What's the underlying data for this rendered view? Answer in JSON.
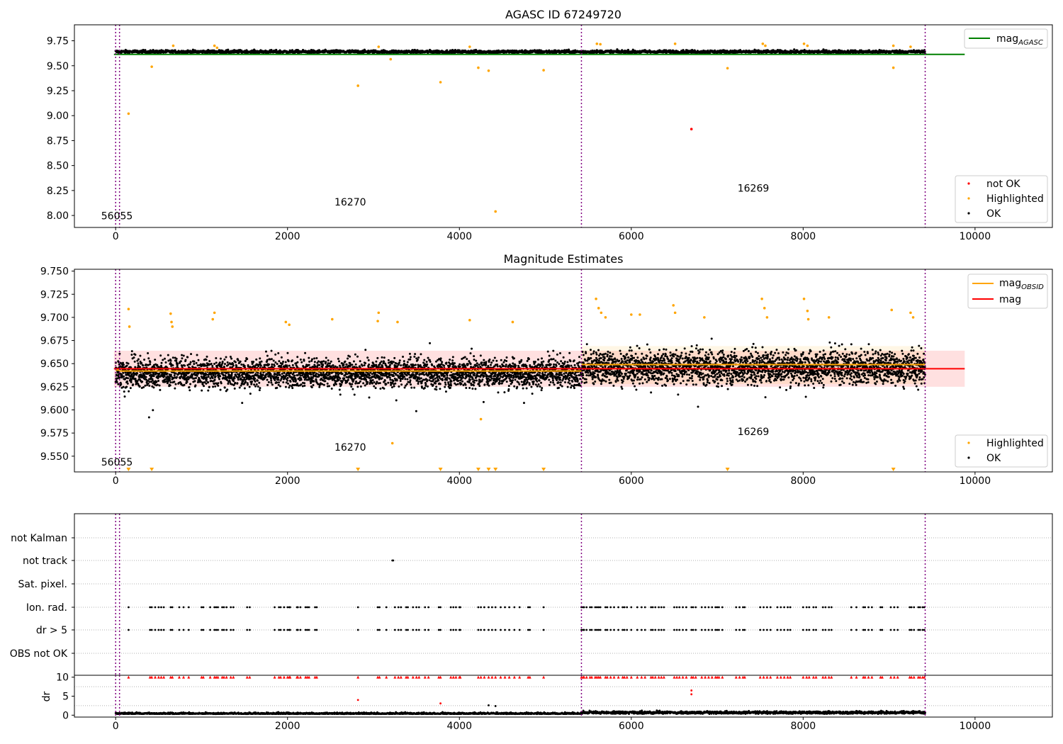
{
  "chart_data": [
    {
      "type": "scatter",
      "title": "AGASC ID 67249720",
      "xlabel": "",
      "ylabel": "",
      "xlim": [
        -480,
        10900
      ],
      "ylim": [
        7.88,
        9.91
      ],
      "xticks": [
        "0",
        "2000",
        "4000",
        "6000",
        "8000",
        "10000"
      ],
      "xtick_values": [
        0,
        2000,
        4000,
        6000,
        8000,
        10000
      ],
      "yticks": [
        "8.00",
        "8.25",
        "8.50",
        "8.75",
        "9.00",
        "9.25",
        "9.50",
        "9.75"
      ],
      "ytick_values": [
        8.0,
        8.25,
        8.5,
        8.75,
        9.0,
        9.25,
        9.5,
        9.75
      ],
      "obs_boundaries": [
        0,
        45,
        5420,
        9420
      ],
      "obs_labels": [
        {
          "text": "56055",
          "x": 15,
          "y": 7.96
        },
        {
          "text": "16270",
          "x": 2730,
          "y": 8.1
        },
        {
          "text": "16269",
          "x": 7420,
          "y": 8.24
        }
      ],
      "mag_agasc": {
        "value": 9.614,
        "x": [
          -20,
          9880
        ]
      },
      "ok_band": {
        "x_start": 0,
        "x_end": 9420,
        "low": 9.6,
        "high": 9.68
      },
      "series": [
        {
          "name": "not OK",
          "color": "#ff0000",
          "points": [
            [
              6700,
              8.865
            ]
          ]
        },
        {
          "name": "Highlighted",
          "color": "#ffa500",
          "points": [
            [
              150,
              9.02
            ],
            [
              420,
              9.49
            ],
            [
              670,
              9.7
            ],
            [
              1150,
              9.7
            ],
            [
              1180,
              9.68
            ],
            [
              2820,
              9.3
            ],
            [
              3200,
              9.565
            ],
            [
              3060,
              9.69
            ],
            [
              3780,
              9.335
            ],
            [
              4220,
              9.48
            ],
            [
              4340,
              9.45
            ],
            [
              4420,
              8.04
            ],
            [
              4120,
              9.69
            ],
            [
              4980,
              9.455
            ],
            [
              5600,
              9.72
            ],
            [
              5640,
              9.715
            ],
            [
              6510,
              9.72
            ],
            [
              7120,
              9.475
            ],
            [
              7530,
              9.72
            ],
            [
              7560,
              9.7
            ],
            [
              8010,
              9.72
            ],
            [
              8050,
              9.7
            ],
            [
              9050,
              9.48
            ],
            [
              9050,
              9.7
            ],
            [
              9250,
              9.69
            ]
          ]
        }
      ],
      "legend": [
        {
          "name": "mag",
          "sub": "AGASC",
          "color": "#008000",
          "kind": "line"
        },
        {
          "name": "not OK",
          "color": "#ff0000",
          "kind": "dot"
        },
        {
          "name": "Highlighted",
          "color": "#ffa500",
          "kind": "dot"
        },
        {
          "name": "OK",
          "color": "#000000",
          "kind": "dot"
        }
      ],
      "legend_placement": "top-right (line), bottom-right (points)"
    },
    {
      "type": "scatter",
      "title": "Magnitude Estimates",
      "xlabel": "",
      "ylabel": "",
      "xlim": [
        -480,
        10900
      ],
      "ylim": [
        9.533,
        9.752
      ],
      "xticks": [
        "0",
        "2000",
        "4000",
        "6000",
        "8000",
        "10000"
      ],
      "xtick_values": [
        0,
        2000,
        4000,
        6000,
        8000,
        10000
      ],
      "yticks": [
        "9.550",
        "9.575",
        "9.600",
        "9.625",
        "9.650",
        "9.675",
        "9.700",
        "9.725",
        "9.750"
      ],
      "ytick_values": [
        9.55,
        9.575,
        9.6,
        9.625,
        9.65,
        9.675,
        9.7,
        9.725,
        9.75
      ],
      "obs_boundaries": [
        0,
        45,
        5420,
        9420
      ],
      "obs_labels": [
        {
          "text": "56055",
          "x": 15,
          "y": 9.54
        },
        {
          "text": "16270",
          "x": 2730,
          "y": 9.556
        },
        {
          "text": "16269",
          "x": 7420,
          "y": 9.573
        }
      ],
      "mag": {
        "value": 9.6445,
        "band": [
          9.625,
          9.664
        ],
        "x": [
          -20,
          9880
        ]
      },
      "mag_obsid": [
        {
          "x": [
            0,
            45
          ],
          "value": 9.643
        },
        {
          "x": [
            45,
            5420
          ],
          "value": 9.642
        },
        {
          "x": [
            5420,
            9420
          ],
          "value": 9.649
        }
      ],
      "obsid_band": {
        "x": [
          5420,
          9420
        ],
        "low": 9.628,
        "high": 9.669
      },
      "ok_clusters": [
        {
          "x": 0,
          "center": 9.64,
          "spread": 0.03
        },
        {
          "x": 5420,
          "center": 9.646,
          "spread": 0.035
        }
      ],
      "highlighted_points": [
        [
          150,
          9.709
        ],
        [
          160,
          9.69
        ],
        [
          640,
          9.704
        ],
        [
          650,
          9.695
        ],
        [
          660,
          9.69
        ],
        [
          1150,
          9.705
        ],
        [
          1130,
          9.698
        ],
        [
          1980,
          9.695
        ],
        [
          2020,
          9.692
        ],
        [
          2520,
          9.698
        ],
        [
          3060,
          9.705
        ],
        [
          3050,
          9.696
        ],
        [
          3220,
          9.564
        ],
        [
          3280,
          9.695
        ],
        [
          4250,
          9.59
        ],
        [
          4120,
          9.697
        ],
        [
          4620,
          9.695
        ],
        [
          5590,
          9.72
        ],
        [
          5620,
          9.71
        ],
        [
          5650,
          9.705
        ],
        [
          5700,
          9.7
        ],
        [
          6000,
          9.703
        ],
        [
          6100,
          9.703
        ],
        [
          6490,
          9.713
        ],
        [
          6510,
          9.705
        ],
        [
          6850,
          9.7
        ],
        [
          7520,
          9.72
        ],
        [
          7550,
          9.71
        ],
        [
          7580,
          9.7
        ],
        [
          8010,
          9.72
        ],
        [
          8050,
          9.707
        ],
        [
          8060,
          9.698
        ],
        [
          8300,
          9.7
        ],
        [
          9030,
          9.708
        ],
        [
          9250,
          9.705
        ],
        [
          9280,
          9.7
        ]
      ],
      "off_scale_markers_x": [
        150,
        420,
        2820,
        3780,
        4220,
        4340,
        4420,
        4980,
        7120,
        9050
      ],
      "legend": [
        {
          "name": "mag",
          "sub": "OBSID",
          "color": "#ffa500",
          "kind": "line"
        },
        {
          "name": "mag",
          "color": "#ff0000",
          "kind": "line"
        },
        {
          "name": "Highlighted",
          "color": "#ffa500",
          "kind": "dot"
        },
        {
          "name": "OK",
          "color": "#000000",
          "kind": "dot"
        }
      ],
      "legend_placement": "top-right (lines), bottom-right (points)"
    },
    {
      "type": "scatter",
      "title": "",
      "xlim": [
        -480,
        10900
      ],
      "xticks": [
        "0",
        "2000",
        "4000",
        "6000",
        "8000",
        "10000"
      ],
      "xtick_values": [
        0,
        2000,
        4000,
        6000,
        8000,
        10000
      ],
      "flag_rows": [
        "not Kalman",
        "not track",
        "Sat. pixel.",
        "Ion. rad.",
        "dr > 5",
        "OBS not OK"
      ],
      "flag_events": {
        "not track": [
          3220,
          3230
        ],
        "Ion. rad.": [
          150,
          400,
          420,
          460,
          500,
          530,
          560,
          640,
          660,
          740,
          790,
          850,
          1000,
          1020,
          1100,
          1150,
          1170,
          1190,
          1240,
          1260,
          1290,
          1340,
          1370,
          1530,
          1560,
          1850,
          1900,
          1920,
          1960,
          2000,
          2020,
          2030,
          2110,
          2120,
          2150,
          2210,
          2230,
          2250,
          2320,
          2340,
          2820,
          3050,
          3070,
          3150,
          3250,
          3290,
          3320,
          3380,
          3400,
          3460,
          3500,
          3530,
          3600,
          3640,
          3760,
          3780,
          3900,
          3930,
          3960,
          4000,
          4010,
          4220,
          4250,
          4290,
          4340,
          4380,
          4420,
          4480,
          4530,
          4580,
          4640,
          4700,
          4800,
          4820,
          4980,
          5420,
          5440,
          5450,
          5480,
          5520,
          5540,
          5580,
          5600,
          5620,
          5640,
          5700,
          5720,
          5760,
          5800,
          5850,
          5900,
          5920,
          5950,
          6000,
          6070,
          6120,
          6160,
          6230,
          6250,
          6280,
          6320,
          6350,
          6380,
          6500,
          6530,
          6560,
          6600,
          6640,
          6700,
          6720,
          6750,
          6820,
          6860,
          6900,
          6940,
          6980,
          7000,
          7020,
          7060,
          7220,
          7260,
          7300,
          7320,
          7500,
          7540,
          7580,
          7620,
          7700,
          7740,
          7780,
          7820,
          7850,
          8000,
          8040,
          8070,
          8120,
          8150,
          8230,
          8260,
          8300,
          8330,
          8560,
          8620,
          8700,
          8720,
          8760,
          8800,
          8900,
          8920,
          9020,
          9060,
          9100,
          9240,
          9260,
          9290,
          9340,
          9360,
          9390,
          9410
        ],
        "dr > 5": [
          150,
          400,
          420,
          460,
          500,
          530,
          560,
          640,
          660,
          740,
          790,
          850,
          1000,
          1020,
          1100,
          1150,
          1170,
          1190,
          1240,
          1260,
          1290,
          1340,
          1370,
          1530,
          1560,
          1850,
          1900,
          1920,
          1960,
          2000,
          2020,
          2030,
          2110,
          2120,
          2150,
          2210,
          2230,
          2250,
          2320,
          2340,
          2820,
          3050,
          3070,
          3150,
          3250,
          3290,
          3320,
          3380,
          3400,
          3460,
          3500,
          3530,
          3600,
          3640,
          3760,
          3780,
          3900,
          3930,
          3960,
          4000,
          4010,
          4220,
          4250,
          4290,
          4340,
          4380,
          4420,
          4480,
          4530,
          4580,
          4640,
          4700,
          4800,
          4820,
          4980,
          5420,
          5440,
          5450,
          5480,
          5520,
          5540,
          5580,
          5600,
          5620,
          5640,
          5700,
          5720,
          5760,
          5800,
          5850,
          5900,
          5920,
          5950,
          6000,
          6070,
          6120,
          6160,
          6230,
          6250,
          6280,
          6320,
          6350,
          6380,
          6500,
          6530,
          6560,
          6600,
          6640,
          6700,
          6720,
          6750,
          6820,
          6860,
          6900,
          6940,
          6980,
          7000,
          7020,
          7060,
          7220,
          7260,
          7300,
          7320,
          7500,
          7540,
          7580,
          7620,
          7700,
          7740,
          7780,
          7820,
          7850,
          8000,
          8040,
          8070,
          8120,
          8150,
          8230,
          8260,
          8300,
          8330,
          8560,
          8620,
          8700,
          8720,
          8760,
          8800,
          8900,
          8920,
          9020,
          9060,
          9100,
          9240,
          9260,
          9290,
          9340,
          9360,
          9390,
          9410
        ]
      },
      "dr_panel": {
        "ylabel": "dr",
        "ylim": [
          -0.5,
          10.5
        ],
        "yticks": [
          "0",
          "5",
          "10"
        ],
        "ytick_values": [
          0,
          5,
          10
        ],
        "clipped_value": 10,
        "baseline_typical": [
          0.3,
          1.2
        ],
        "outliers": [
          [
            2820,
            4.0
          ],
          [
            3780,
            3.1
          ],
          [
            4340,
            2.6
          ],
          [
            4420,
            2.4
          ],
          [
            6700,
            5.5
          ],
          [
            6700,
            6.5
          ]
        ]
      },
      "obs_boundaries": [
        0,
        45,
        5420,
        9420
      ]
    }
  ]
}
